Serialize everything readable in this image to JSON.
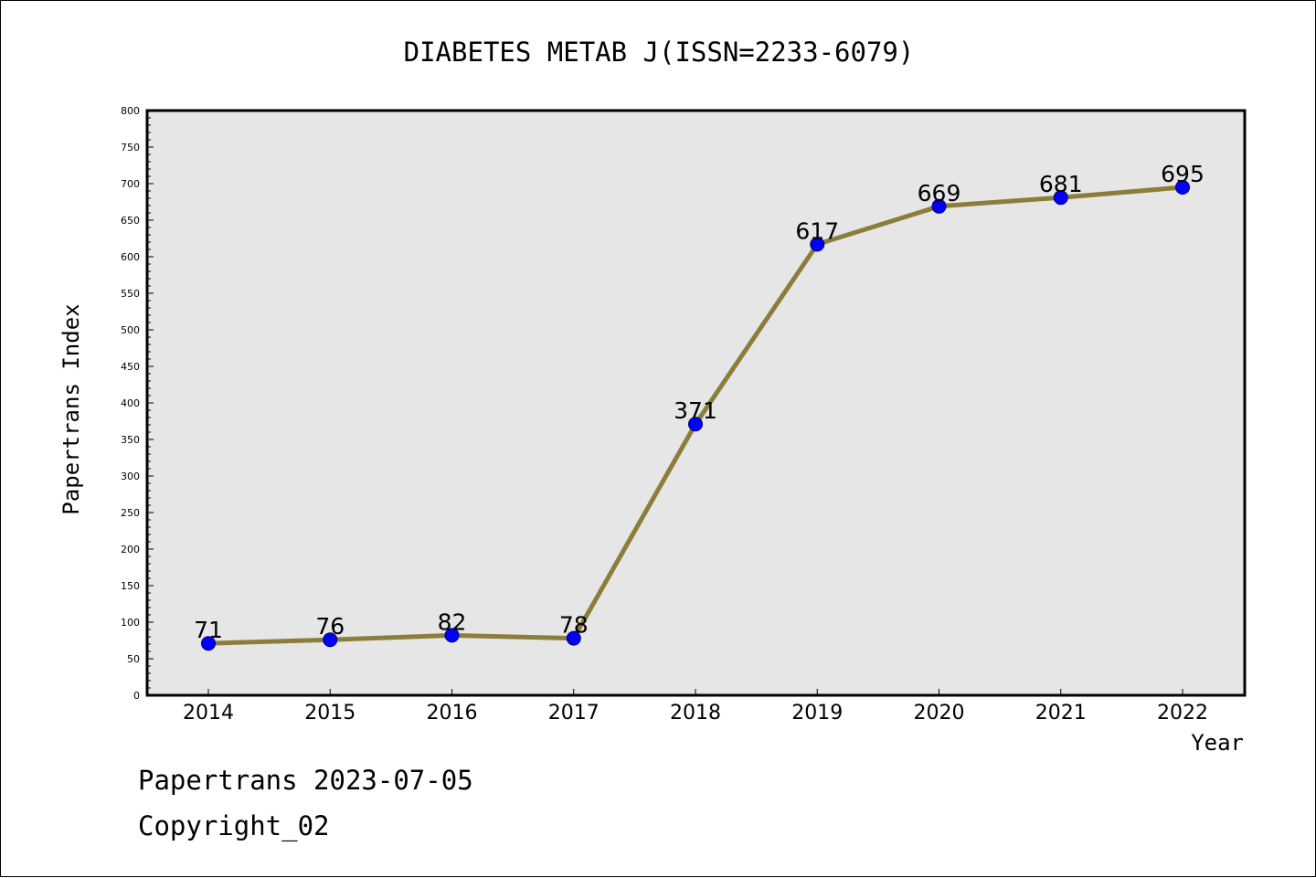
{
  "chart_data": {
    "type": "line",
    "title": "DIABETES METAB J(ISSN=2233-6079)",
    "xlabel": "Year",
    "ylabel": "Papertrans Index",
    "categories": [
      "2014",
      "2015",
      "2016",
      "2017",
      "2018",
      "2019",
      "2020",
      "2021",
      "2022"
    ],
    "series": [
      {
        "values": [
          71,
          76,
          82,
          78,
          371,
          617,
          669,
          681,
          695
        ]
      }
    ],
    "data_labels": [
      "71",
      "76",
      "82",
      "78",
      "371",
      "617",
      "669",
      "681",
      "695"
    ],
    "y_ticks": [
      "0",
      "50",
      "100",
      "150",
      "200",
      "250",
      "300",
      "350",
      "400",
      "450",
      "500",
      "550",
      "600",
      "650",
      "700",
      "750",
      "800"
    ],
    "ylim": [
      0,
      800
    ],
    "grid": false,
    "colors": {
      "line": "#8b7d3a",
      "marker": "#0000ff",
      "plot_background": "#e6e6e6"
    }
  },
  "footer": {
    "line1": "Papertrans 2023-07-05",
    "line2": "Copyright_02"
  }
}
